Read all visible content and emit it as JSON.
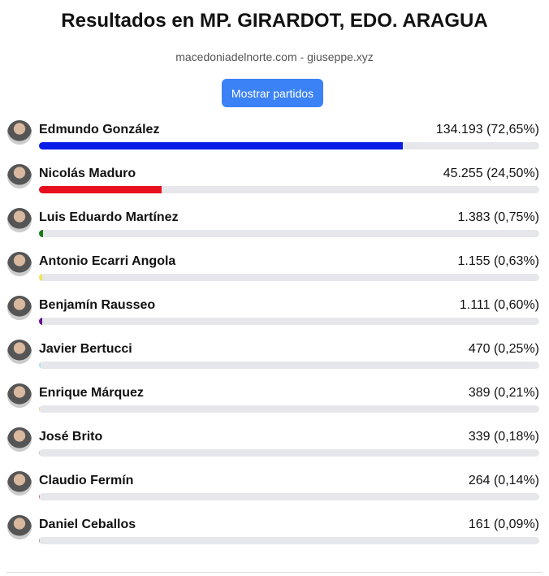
{
  "header": {
    "title": "Resultados en MP. GIRARDOT, EDO. ARAGUA",
    "subtitle": "macedoniadelnorte.com - giuseppe.xyz",
    "button": "Mostrar partidos"
  },
  "candidates": [
    {
      "name": "Edmundo González",
      "label": "134.193 (72,65%)",
      "percent": 72.65,
      "color": "#0a1ee8"
    },
    {
      "name": "Nicolás Maduro",
      "label": "45.255 (24,50%)",
      "percent": 24.5,
      "color": "#e8101e"
    },
    {
      "name": "Luis Eduardo Martínez",
      "label": "1.383 (0,75%)",
      "percent": 0.75,
      "color": "#1a7a1a"
    },
    {
      "name": "Antonio Ecarri Angola",
      "label": "1.155 (0,63%)",
      "percent": 0.63,
      "color": "#f2e35a"
    },
    {
      "name": "Benjamín Rausseo",
      "label": "1.111 (0,60%)",
      "percent": 0.6,
      "color": "#6a0a8a"
    },
    {
      "name": "Javier Bertucci",
      "label": "470 (0,25%)",
      "percent": 0.25,
      "color": "#a8e6ef"
    },
    {
      "name": "Enrique Márquez",
      "label": "389 (0,21%)",
      "percent": 0.21,
      "color": "#f0cf6a"
    },
    {
      "name": "José Brito",
      "label": "339 (0,18%)",
      "percent": 0.18,
      "color": "#c8c8c8"
    },
    {
      "name": "Claudio Fermín",
      "label": "264 (0,14%)",
      "percent": 0.14,
      "color": "#e06090"
    },
    {
      "name": "Daniel Ceballos",
      "label": "161 (0,09%)",
      "percent": 0.09,
      "color": "#a0a0a0"
    }
  ]
}
